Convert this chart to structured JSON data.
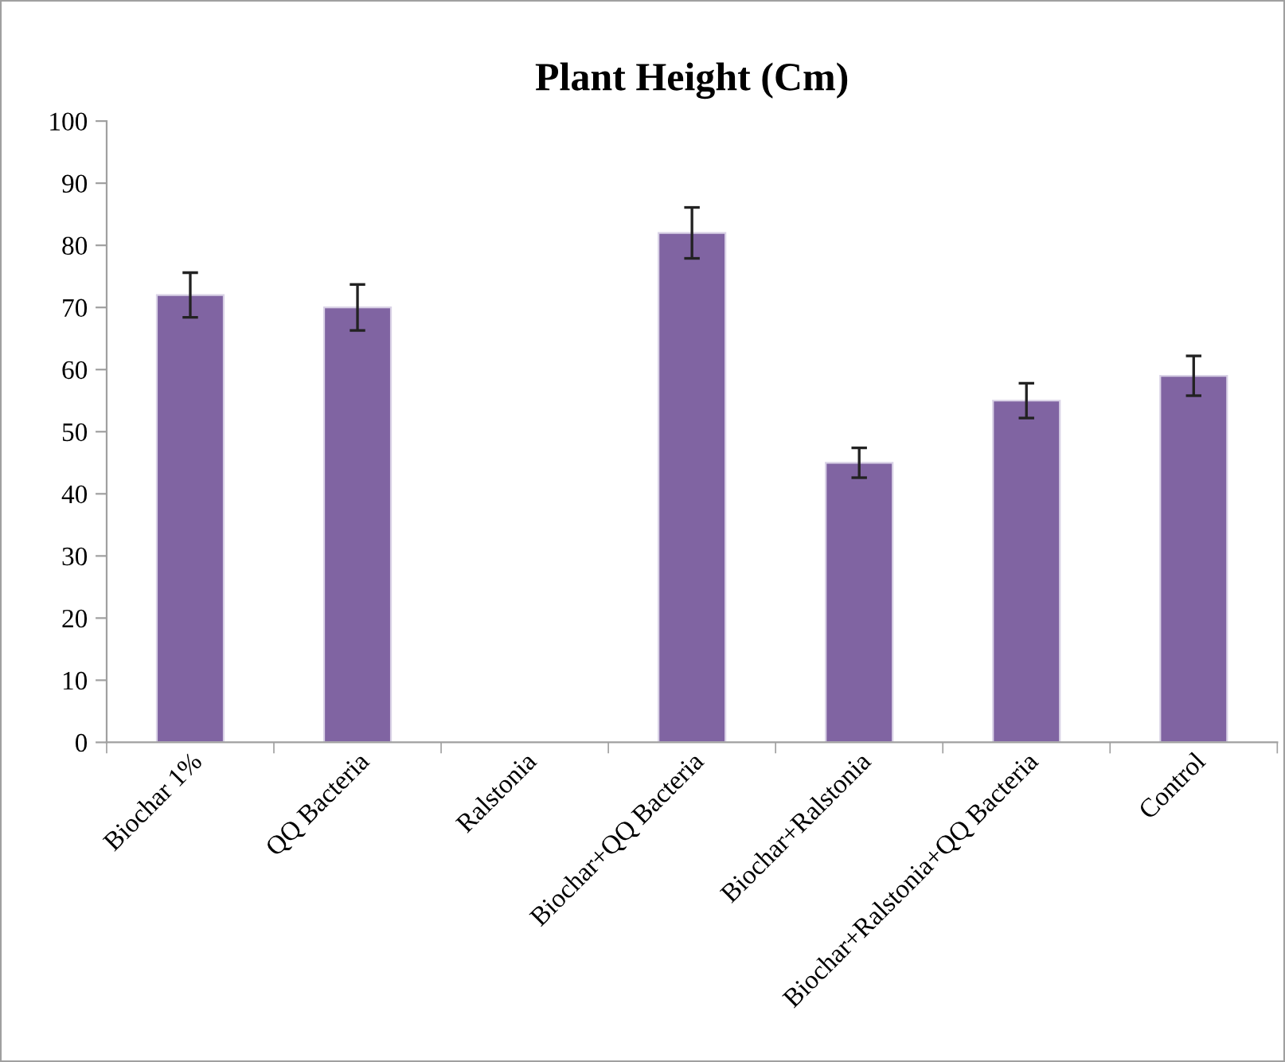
{
  "chart_data": {
    "type": "bar",
    "title": "Plant Height (Cm)",
    "categories": [
      "Biochar 1%",
      "QQ Bacteria",
      "Ralstonia",
      "Biochar+QQ Bacteria",
      "Biochar+Ralstonia",
      "Biochar+Ralstonia+QQ Bacteria",
      "Control"
    ],
    "values": [
      72,
      70,
      null,
      82,
      45,
      55,
      59
    ],
    "errors": [
      3.6,
      3.7,
      null,
      4.1,
      2.4,
      2.8,
      3.2
    ],
    "color": "#8064a2",
    "ylim": [
      0,
      100
    ],
    "yticks": [
      0,
      10,
      20,
      30,
      40,
      50,
      60,
      70,
      80,
      90,
      100
    ],
    "grid": false
  }
}
